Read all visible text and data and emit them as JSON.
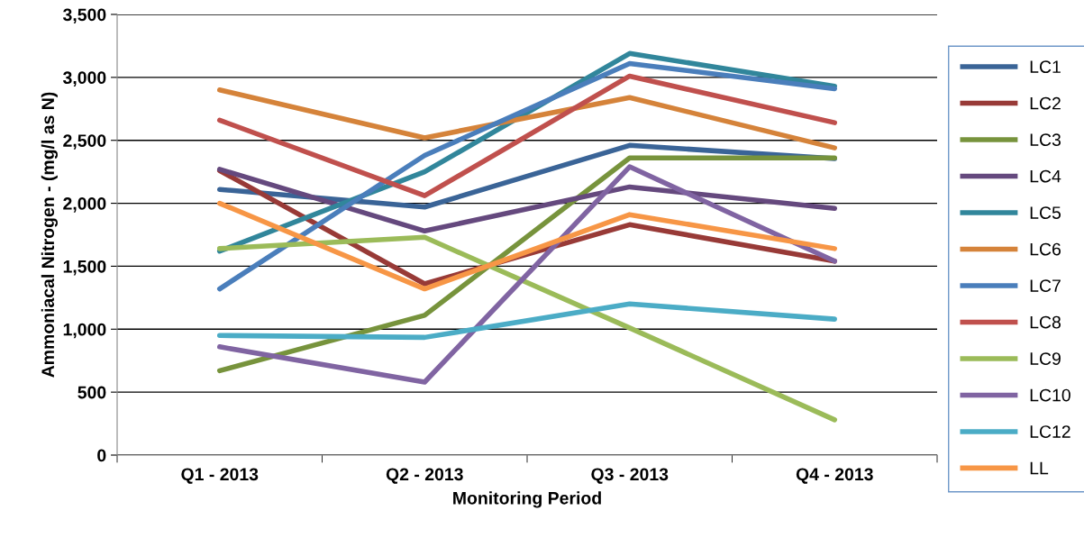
{
  "chart_data": {
    "type": "line",
    "xlabel": "Monitoring Period",
    "ylabel": "Ammoniacal Nitrogen - (mg/l as N)",
    "categories": [
      "Q1 - 2013",
      "Q2 - 2013",
      "Q3 - 2013",
      "Q4 - 2013"
    ],
    "ylim": [
      0,
      3500
    ],
    "yticks": [
      {
        "value": 0,
        "label": "0"
      },
      {
        "value": 500,
        "label": "500"
      },
      {
        "value": 1000,
        "label": "1,000"
      },
      {
        "value": 1500,
        "label": "1,500"
      },
      {
        "value": 2000,
        "label": "2,000"
      },
      {
        "value": 2500,
        "label": "2,500"
      },
      {
        "value": 3000,
        "label": "3,000"
      },
      {
        "value": 3500,
        "label": "3,500"
      }
    ],
    "grid": "y",
    "legend": "right",
    "marker": "none",
    "line_style": "solid",
    "series": [
      {
        "name": "LC1",
        "color": "#3a6497",
        "values": [
          2110,
          1970,
          2460,
          2355
        ]
      },
      {
        "name": "LC2",
        "color": "#983a37",
        "values": [
          2260,
          1360,
          1830,
          1540
        ]
      },
      {
        "name": "LC3",
        "color": "#77933c",
        "values": [
          670,
          1110,
          2360,
          2360
        ]
      },
      {
        "name": "LC4",
        "color": "#65497e",
        "values": [
          2270,
          1780,
          2130,
          1960
        ]
      },
      {
        "name": "LC5",
        "color": "#31869b",
        "values": [
          1620,
          2250,
          3190,
          2930
        ]
      },
      {
        "name": "LC6",
        "color": "#d5833a",
        "values": [
          2900,
          2520,
          2840,
          2440
        ]
      },
      {
        "name": "LC7",
        "color": "#4a7ebb",
        "values": [
          1320,
          2380,
          3110,
          2910
        ]
      },
      {
        "name": "LC8",
        "color": "#c0504d",
        "values": [
          2660,
          2060,
          3010,
          2640
        ]
      },
      {
        "name": "LC9",
        "color": "#9bbb59",
        "values": [
          1640,
          1730,
          1010,
          280
        ]
      },
      {
        "name": "LC10",
        "color": "#8064a2",
        "values": [
          860,
          580,
          2290,
          1540
        ]
      },
      {
        "name": "LC12",
        "color": "#4bacc6",
        "values": [
          950,
          935,
          1200,
          1080
        ]
      },
      {
        "name": "LL",
        "color": "#f79646",
        "values": [
          2000,
          1320,
          1910,
          1640
        ]
      }
    ]
  }
}
